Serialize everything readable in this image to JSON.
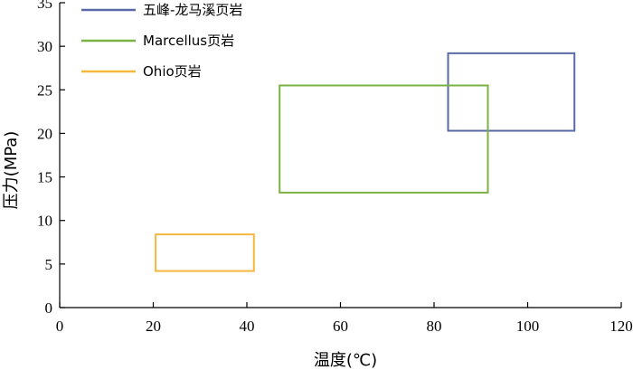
{
  "chart_data": {
    "type": "box-region",
    "xlabel": "温度(℃)",
    "ylabel": "压力(MPa)",
    "xlim": [
      0,
      120
    ],
    "ylim": [
      0,
      35
    ],
    "xticks": [
      0,
      20,
      40,
      60,
      80,
      100,
      120
    ],
    "yticks": [
      0,
      5,
      10,
      15,
      20,
      25,
      30,
      35
    ],
    "grid": false,
    "legend_position": "top-left",
    "series": [
      {
        "name": "五峰-龙马溪页岩",
        "color": "#5a6aa8",
        "x": [
          83,
          110
        ],
        "y": [
          20.3,
          29.2
        ]
      },
      {
        "name": "Marcellus页岩",
        "color": "#7bb245",
        "x": [
          47,
          91.5
        ],
        "y": [
          13.2,
          25.5
        ]
      },
      {
        "name": "Ohio页岩",
        "color": "#f5b73d",
        "x": [
          20.5,
          41.5
        ],
        "y": [
          4.2,
          8.4
        ]
      }
    ]
  }
}
